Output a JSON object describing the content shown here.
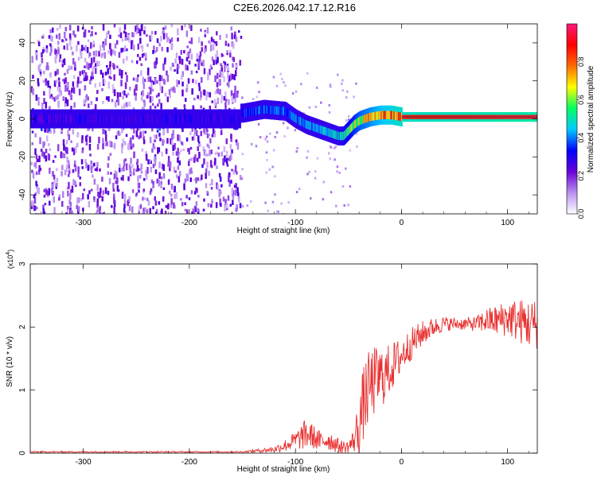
{
  "chart_data": [
    {
      "type": "heatmap",
      "title": "C2E6.2026.042.17.12.R16",
      "xlabel": "Height of straight line (km)",
      "ylabel": "Frequency (Hz)",
      "xlim": [
        -350,
        128
      ],
      "ylim": [
        -50,
        50
      ],
      "xticks": [
        -300,
        -200,
        -100,
        0,
        100
      ],
      "yticks": [
        -40,
        -20,
        0,
        20,
        40
      ],
      "colorbar": {
        "label": "Normalized spectral amplitude",
        "range": [
          0,
          1
        ],
        "ticks": [
          "0.0",
          "0.2",
          "0.4",
          "0.6",
          "0.8"
        ],
        "tick_values": [
          0.0,
          0.2,
          0.4,
          0.6,
          0.8
        ],
        "colors": [
          "#ffffff",
          "#b98ff0",
          "#6a00d8",
          "#0000ff",
          "#00c8ff",
          "#00ff60",
          "#ffff00",
          "#ff6a00",
          "#ff0000",
          "#ff1a7a"
        ]
      },
      "noise_region": {
        "x": [
          -350,
          -152
        ],
        "f": [
          -50,
          50
        ],
        "amplitude": 0.22
      },
      "signal_trace": {
        "x": [
          -150,
          -130,
          -110,
          -100,
          -90,
          -80,
          -70,
          -60,
          -55,
          -50,
          -45,
          -40,
          -30,
          -20,
          -10,
          0,
          50,
          100,
          128
        ],
        "f": [
          3,
          5,
          4,
          0,
          -3,
          -5,
          -7,
          -9,
          -9,
          -6,
          -3,
          -1,
          1,
          2,
          2,
          1,
          1,
          1,
          1
        ],
        "amplitude": [
          0.35,
          0.4,
          0.42,
          0.45,
          0.45,
          0.45,
          0.48,
          0.5,
          0.55,
          0.6,
          0.65,
          0.7,
          0.75,
          0.8,
          0.85,
          0.88,
          0.9,
          0.92,
          0.92
        ]
      }
    },
    {
      "type": "line",
      "xlabel": "Height of straight line (km)",
      "ylabel": "SNR (10 * v/v)",
      "y_multiplier": "(x10^4)",
      "y_multiplier_base": "(x10",
      "y_multiplier_exp": "4",
      "xlim": [
        -350,
        128
      ],
      "ylim": [
        0,
        3
      ],
      "xticks": [
        -300,
        -200,
        -100,
        0,
        100
      ],
      "yticks": [
        0,
        1,
        2,
        3
      ],
      "color": "#e83030",
      "series": [
        {
          "name": "SNR",
          "x": [
            -350,
            -300,
            -250,
            -200,
            -150,
            -120,
            -110,
            -100,
            -95,
            -90,
            -85,
            -80,
            -75,
            -70,
            -65,
            -60,
            -55,
            -50,
            -45,
            -40,
            -35,
            -30,
            -25,
            -20,
            -15,
            -10,
            -5,
            0,
            10,
            20,
            30,
            40,
            50,
            60,
            70,
            80,
            90,
            100,
            110,
            120,
            128
          ],
          "values": [
            0.02,
            0.02,
            0.02,
            0.02,
            0.02,
            0.06,
            0.12,
            0.2,
            0.25,
            0.3,
            0.28,
            0.22,
            0.18,
            0.22,
            0.18,
            0.12,
            0.1,
            0.1,
            0.2,
            0.45,
            0.85,
            1.05,
            1.15,
            1.2,
            1.25,
            1.35,
            1.45,
            1.55,
            1.75,
            1.9,
            2.0,
            2.05,
            2.05,
            2.05,
            2.05,
            2.1,
            2.1,
            2.15,
            2.1,
            2.05,
            2.05
          ],
          "amplitude": [
            0.01,
            0.01,
            0.01,
            0.01,
            0.01,
            0.05,
            0.1,
            0.15,
            0.2,
            0.25,
            0.2,
            0.18,
            0.15,
            0.18,
            0.15,
            0.12,
            0.1,
            0.1,
            0.2,
            0.5,
            0.6,
            0.6,
            0.55,
            0.5,
            0.45,
            0.4,
            0.35,
            0.3,
            0.25,
            0.2,
            0.15,
            0.12,
            0.1,
            0.1,
            0.12,
            0.2,
            0.25,
            0.3,
            0.35,
            0.4,
            0.4
          ]
        }
      ]
    }
  ]
}
